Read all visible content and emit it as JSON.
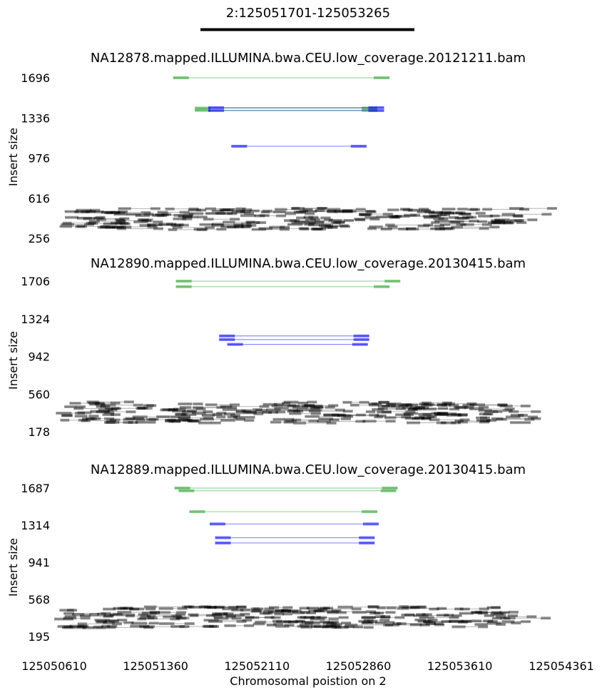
{
  "chart_data": {
    "type": "scatter",
    "title": "2:125051701-125053265",
    "region": {
      "start": 125051701,
      "end": 125053265
    },
    "xlabel": "Chromosomal poistion on 2",
    "x_ticks": [
      125050610,
      125051360,
      125052110,
      125052860,
      125053610,
      125054361
    ],
    "xlim": [
      125050610,
      125054361
    ],
    "colors": {
      "normal": "#000000",
      "deletion": "#2ca02c",
      "duplication": "#0000ff"
    },
    "panels": [
      {
        "title": "NA12878.mapped.ILLUMINA.bwa.CEU.low_coverage.20121211.bam",
        "ylabel": "Insert size",
        "y_ticks": [
          256,
          616,
          976,
          1336,
          1696
        ],
        "ylim": [
          256,
          1696
        ],
        "split_pairs": [
          {
            "x1": 125051490,
            "x2": 125053090,
            "y": 1696,
            "kind": "deletion"
          },
          {
            "x1": 125051650,
            "x2": 125053000,
            "y": 1424,
            "kind": "deletion"
          },
          {
            "x1": 125051650,
            "x2": 125053000,
            "y": 1404,
            "kind": "deletion"
          },
          {
            "x1": 125051750,
            "x2": 125053050,
            "y": 1428,
            "kind": "duplication"
          },
          {
            "x1": 125051750,
            "x2": 125053050,
            "y": 1402,
            "kind": "duplication"
          },
          {
            "x1": 125051920,
            "x2": 125052920,
            "y": 1082,
            "kind": "duplication"
          }
        ]
      },
      {
        "title": "NA12890.mapped.ILLUMINA.bwa.CEU.low_coverage.20130415.bam",
        "ylabel": "Insert size",
        "y_ticks": [
          178,
          560,
          942,
          1324,
          1706
        ],
        "ylim": [
          178,
          1706
        ],
        "split_pairs": [
          {
            "x1": 125051510,
            "x2": 125053170,
            "y": 1706,
            "kind": "deletion"
          },
          {
            "x1": 125051510,
            "x2": 125053090,
            "y": 1650,
            "kind": "deletion"
          },
          {
            "x1": 125051830,
            "x2": 125052940,
            "y": 1150,
            "kind": "duplication"
          },
          {
            "x1": 125051830,
            "x2": 125052940,
            "y": 1113,
            "kind": "duplication"
          },
          {
            "x1": 125051890,
            "x2": 125052930,
            "y": 1064,
            "kind": "duplication"
          }
        ]
      },
      {
        "title": "NA12889.mapped.ILLUMINA.bwa.CEU.low_coverage.20130415.bam",
        "ylabel": "Insert size",
        "y_ticks": [
          195,
          568,
          941,
          1314,
          1687
        ],
        "ylim": [
          195,
          1687
        ],
        "split_pairs": [
          {
            "x1": 125051500,
            "x2": 125053150,
            "y": 1687,
            "kind": "deletion"
          },
          {
            "x1": 125051530,
            "x2": 125053140,
            "y": 1660,
            "kind": "deletion"
          },
          {
            "x1": 125051610,
            "x2": 125053000,
            "y": 1450,
            "kind": "deletion"
          },
          {
            "x1": 125051760,
            "x2": 125053010,
            "y": 1326,
            "kind": "duplication"
          },
          {
            "x1": 125051800,
            "x2": 125052980,
            "y": 1188,
            "kind": "duplication"
          },
          {
            "x1": 125051800,
            "x2": 125052980,
            "y": 1135,
            "kind": "duplication"
          }
        ]
      }
    ]
  }
}
